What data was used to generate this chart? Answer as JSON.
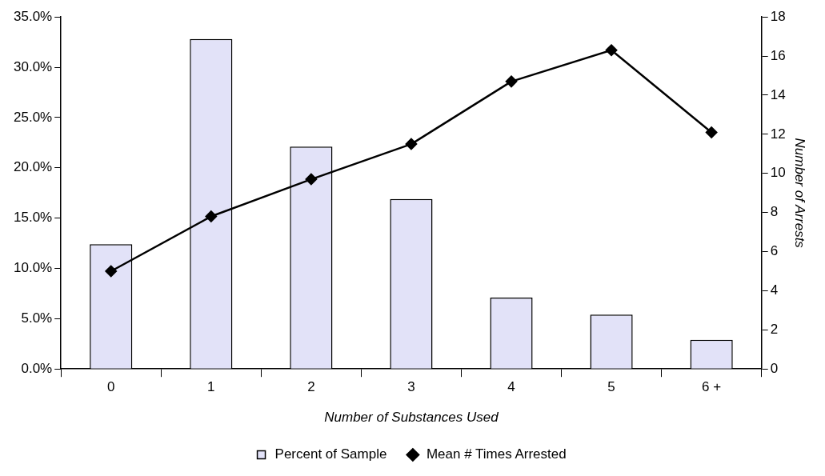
{
  "chart_data": {
    "type": "bar",
    "xlabel": "Number of Substances Used",
    "y2label": "Number of Arrests",
    "categories": [
      "0",
      "1",
      "2",
      "3",
      "4",
      "5",
      "6 +"
    ],
    "series": [
      {
        "name": "Percent of Sample",
        "color": "#e2e2f8",
        "values": [
          12.4,
          32.8,
          22.1,
          16.9,
          7.1,
          5.4,
          2.9
        ]
      },
      {
        "name": "Mean # Times Arrested",
        "type": "line",
        "axis": "y2",
        "color": "#000000",
        "marker": "diamond",
        "values": [
          5.0,
          7.8,
          9.7,
          11.5,
          14.7,
          16.3,
          12.1
        ]
      }
    ],
    "ylim": [
      0,
      35
    ],
    "yticks": [
      {
        "value": 0,
        "label": "0.0%"
      },
      {
        "value": 5,
        "label": "5.0%"
      },
      {
        "value": 10,
        "label": "10.0%"
      },
      {
        "value": 15,
        "label": "15.0%"
      },
      {
        "value": 20,
        "label": "20.0%"
      },
      {
        "value": 25,
        "label": "25.0%"
      },
      {
        "value": 30,
        "label": "30.0%"
      },
      {
        "value": 35,
        "label": "35.0%"
      }
    ],
    "y2lim": [
      0,
      18
    ],
    "y2ticks": [
      0,
      2,
      4,
      6,
      8,
      10,
      12,
      14,
      16,
      18
    ],
    "grid": false,
    "legend": "bottom"
  }
}
